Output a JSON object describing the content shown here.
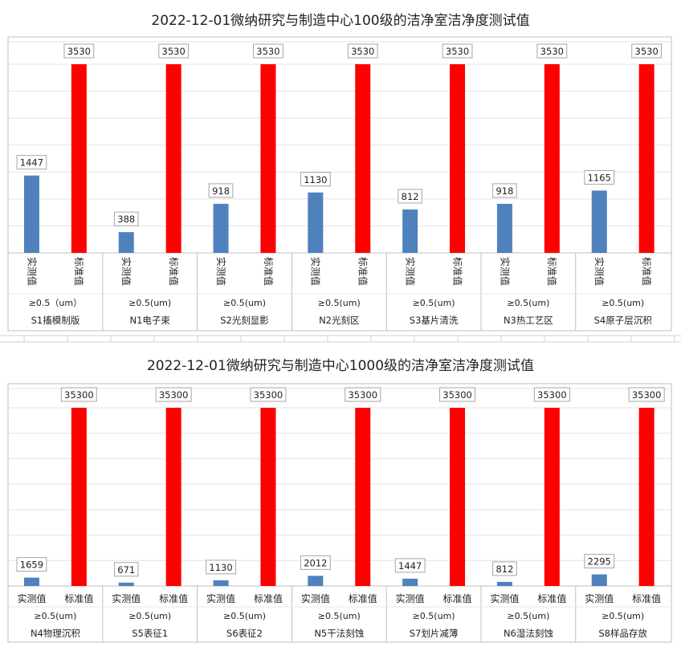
{
  "chart_data": [
    {
      "type": "bar",
      "title": "2022-12-01微纳研究与制造中心100级的洁净室洁净度测试值",
      "categories": [
        "S1搐模制版",
        "N1电子束",
        "S2光刻显影",
        "N2光刻区",
        "S3基片清洗",
        "N3热工艺区",
        "S4原子层沉积"
      ],
      "particle_labels": [
        "≥0.5（um）",
        "≥0.5(um)",
        "≥0.5(um)",
        "≥0.5(um)",
        "≥0.5(um)",
        "≥0.5(um)",
        "≥0.5(um)"
      ],
      "series": [
        {
          "name": "实测值",
          "values": [
            1447,
            388,
            918,
            1130,
            812,
            918,
            1165
          ]
        },
        {
          "name": "标准值",
          "values": [
            3530,
            3530,
            3530,
            3530,
            3530,
            3530,
            3530
          ]
        }
      ],
      "colors": {
        "实测值": "#4f81bd",
        "标准值": "#ff0000"
      },
      "series_label_orientation": "vertical",
      "ylim": [
        0,
        3530
      ],
      "grid": true,
      "legend": "none"
    },
    {
      "type": "bar",
      "title": "2022-12-01微纳研究与制造中心1000级的洁净室洁净度测试值",
      "categories": [
        "N4物理沉积",
        "S5表征1",
        "S6表征2",
        "N5干法刻蚀",
        "S7划片减薄",
        "N6湿法刻蚀",
        "S8样品存放"
      ],
      "particle_labels": [
        "≥0.5(um)",
        "≥0.5(um)",
        "≥0.5(um)",
        "≥0.5(um)",
        "≥0.5(um)",
        "≥0.5(um)",
        "≥0.5(um)"
      ],
      "series": [
        {
          "name": "实测值",
          "values": [
            1659,
            671,
            1130,
            2012,
            1447,
            812,
            2295
          ]
        },
        {
          "name": "标准值",
          "values": [
            35300,
            35300,
            35300,
            35300,
            35300,
            35300,
            35300
          ]
        }
      ],
      "colors": {
        "实测值": "#4f81bd",
        "标准值": "#ff0000"
      },
      "series_label_orientation": "horizontal",
      "ylim": [
        0,
        35300
      ],
      "grid": true,
      "legend": "none"
    }
  ]
}
